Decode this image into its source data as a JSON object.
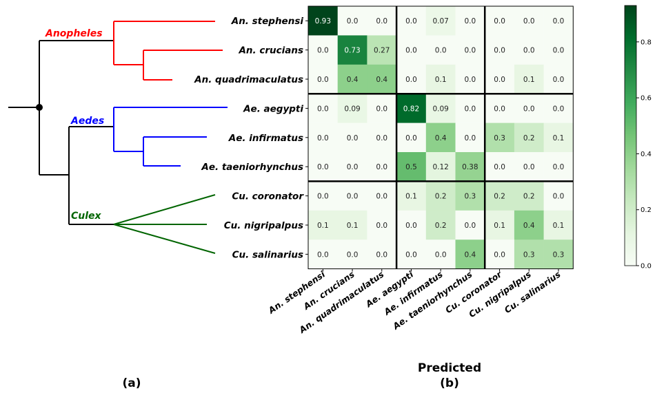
{
  "figure": {
    "panel_a_label": "(a)",
    "panel_b_label": "(b)",
    "xlabel": "Predicted"
  },
  "tree": {
    "genera": [
      {
        "name": "Anopheles",
        "color": "#ff0000"
      },
      {
        "name": "Aedes",
        "color": "#0000ff"
      },
      {
        "name": "Culex",
        "color": "#006400"
      }
    ]
  },
  "chart_data": {
    "type": "heatmap",
    "title": "",
    "xlabel": "Predicted",
    "ylabel": "",
    "row_labels": [
      "An. stephensi",
      "An. crucians",
      "An. quadrimaculatus",
      "Ae. aegypti",
      "Ae. infirmatus",
      "Ae. taeniorhynchus",
      "Cu. coronator",
      "Cu. nigripalpus",
      "Cu. salinarius"
    ],
    "col_labels": [
      "An. stephensi",
      "An. crucians",
      "An. quadrimaculatus",
      "Ae. aegypti",
      "Ae. infirmatus",
      "Ae. taeniorhynchus",
      "Cu. coronator",
      "Cu. nigripalpus",
      "Cu. salinarius"
    ],
    "values": [
      [
        "0.93",
        "0.0",
        "0.0",
        "0.0",
        "0.07",
        "0.0",
        "0.0",
        "0.0",
        "0.0"
      ],
      [
        "0.0",
        "0.73",
        "0.27",
        "0.0",
        "0.0",
        "0.0",
        "0.0",
        "0.0",
        "0.0"
      ],
      [
        "0.0",
        "0.4",
        "0.4",
        "0.0",
        "0.1",
        "0.0",
        "0.0",
        "0.1",
        "0.0"
      ],
      [
        "0.0",
        "0.09",
        "0.0",
        "0.82",
        "0.09",
        "0.0",
        "0.0",
        "0.0",
        "0.0"
      ],
      [
        "0.0",
        "0.0",
        "0.0",
        "0.0",
        "0.4",
        "0.0",
        "0.3",
        "0.2",
        "0.1"
      ],
      [
        "0.0",
        "0.0",
        "0.0",
        "0.5",
        "0.12",
        "0.38",
        "0.0",
        "0.0",
        "0.0"
      ],
      [
        "0.0",
        "0.0",
        "0.0",
        "0.1",
        "0.2",
        "0.3",
        "0.2",
        "0.2",
        "0.0"
      ],
      [
        "0.1",
        "0.1",
        "0.0",
        "0.0",
        "0.2",
        "0.0",
        "0.1",
        "0.4",
        "0.1"
      ],
      [
        "0.0",
        "0.0",
        "0.0",
        "0.0",
        "0.0",
        "0.4",
        "0.0",
        "0.3",
        "0.3"
      ]
    ],
    "colormap": "Greens",
    "value_range": [
      0,
      0.93
    ],
    "colorbar": {
      "ticks": [
        "0.0",
        "0.2",
        "0.4",
        "0.6",
        "0.8"
      ]
    },
    "group_boundaries_after": [
      3,
      6
    ]
  }
}
